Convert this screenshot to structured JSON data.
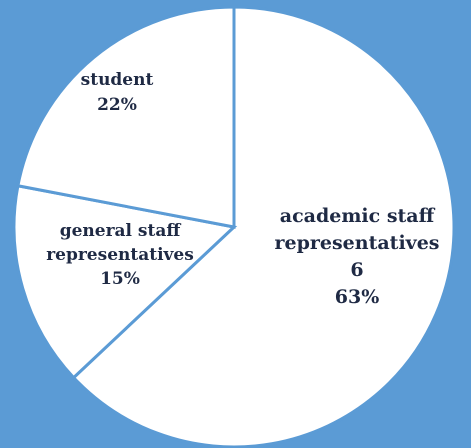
{
  "chart_data": {
    "type": "pie",
    "slices": [
      {
        "name": "academic staff representatives",
        "value_label": "6",
        "percent": 63,
        "pct_label": "63%",
        "label_lines": [
          "academic staff",
          "representatives",
          "6",
          "63%"
        ]
      },
      {
        "name": "general staff representatives",
        "value_label": "",
        "percent": 15,
        "pct_label": "15%",
        "label_lines": [
          "general staff",
          "representatives",
          "15%"
        ]
      },
      {
        "name": "student",
        "value_label": "",
        "percent": 22,
        "pct_label": "22%",
        "label_lines": [
          "student",
          "22%"
        ]
      }
    ],
    "start_direction": "top",
    "direction": "clockwise",
    "legend": "none",
    "data_labels": "inside"
  },
  "colors": {
    "background": "#5b9bd5",
    "slice_fill": "#ffffff",
    "slice_border": "#5b9bd5",
    "label_text": "#1f2a44"
  }
}
